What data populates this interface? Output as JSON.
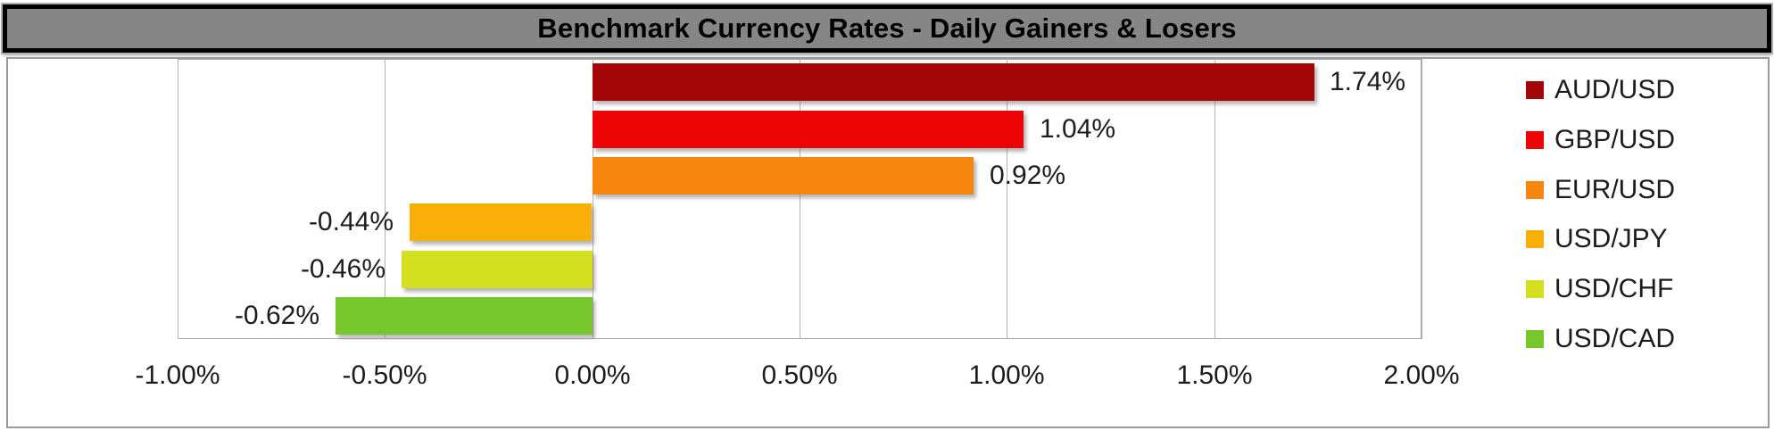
{
  "header": {
    "title": "Benchmark Currency Rates - Daily Gainers & Losers"
  },
  "chart_data": {
    "type": "bar",
    "orientation": "horizontal",
    "title": "Benchmark Currency Rates - Daily Gainers & Losers",
    "categories": [
      "AUD/USD",
      "GBP/USD",
      "EUR/USD",
      "USD/JPY",
      "USD/CHF",
      "USD/CAD"
    ],
    "values": [
      1.74,
      1.04,
      0.92,
      -0.44,
      -0.46,
      -0.62
    ],
    "value_labels": [
      "1.74%",
      "1.04%",
      "0.92%",
      "-0.44%",
      "-0.46%",
      "-0.62%"
    ],
    "bar_colors": [
      "#A40507",
      "#EE0405",
      "#F6860D",
      "#F8B009",
      "#D4E01F",
      "#76C72C"
    ],
    "x_tick_labels": [
      "-1.00%",
      "-0.50%",
      "0.00%",
      "0.50%",
      "1.00%",
      "1.50%",
      "2.00%"
    ],
    "x_tick_values": [
      -1.0,
      -0.5,
      0.0,
      0.5,
      1.0,
      1.5,
      2.0
    ],
    "xlim": [
      -1.0,
      2.0
    ],
    "xlabel": "",
    "ylabel": "",
    "grid": true,
    "legend_position": "right",
    "legend": [
      {
        "label": "AUD/USD",
        "color": "#A40507"
      },
      {
        "label": "GBP/USD",
        "color": "#EE0405"
      },
      {
        "label": "EUR/USD",
        "color": "#F6860D"
      },
      {
        "label": "USD/JPY",
        "color": "#F8B009"
      },
      {
        "label": "USD/CHF",
        "color": "#D4E01F"
      },
      {
        "label": "USD/CAD",
        "color": "#76C72C"
      }
    ]
  },
  "style_colors": {
    "title_background": "#868686",
    "title_border": "#000000",
    "frame_border": "#9A9A9A",
    "gridline": "#B3B3B3",
    "label_text": "#1C1C1C"
  }
}
